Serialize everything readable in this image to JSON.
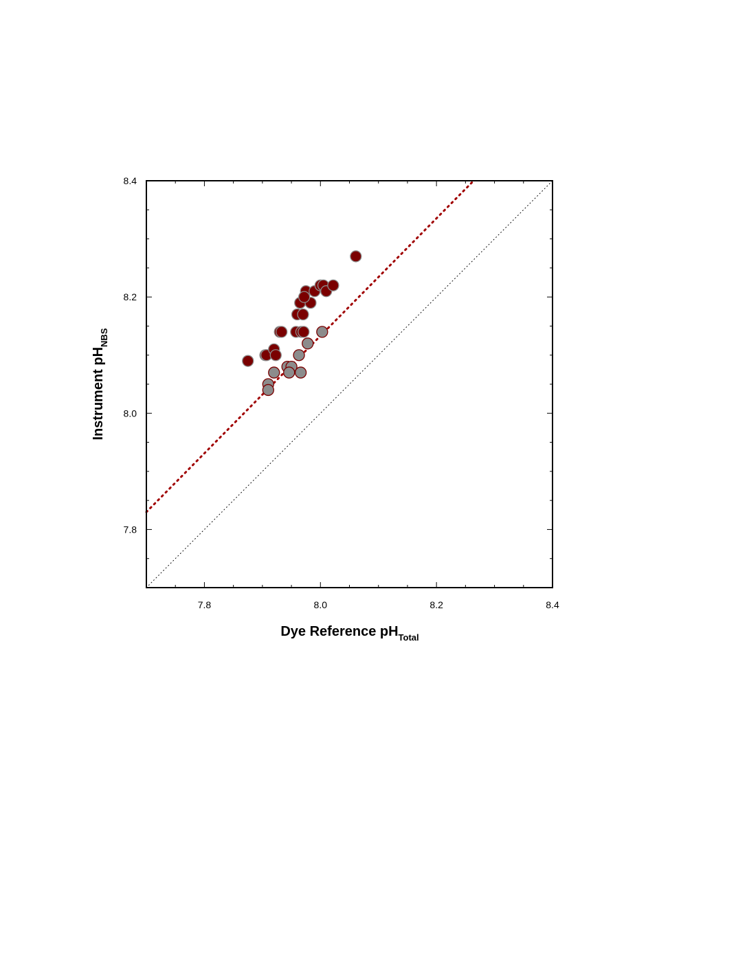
{
  "chart_data": {
    "type": "scatter",
    "xlabel": "Dye Reference pH",
    "xlabel_sub": "Total",
    "ylabel": "Instrument pH",
    "ylabel_sub": "NBS",
    "xlim": [
      7.7,
      8.4
    ],
    "ylim": [
      7.7,
      8.4
    ],
    "xticks": [
      7.8,
      {
        "value": 8,
        "label": "8.0"
      },
      8.2,
      8.4
    ],
    "yticks": [
      7.8,
      {
        "value": 8,
        "label": "8.0"
      },
      8.2,
      8.4
    ],
    "xminorticks": [
      7.75,
      7.85,
      7.9,
      7.95,
      8.05,
      8.1,
      8.15,
      8.25,
      8.3,
      8.35
    ],
    "yminorticks": [
      7.75,
      7.85,
      7.9,
      7.95,
      8.05,
      8.1,
      8.15,
      8.25,
      8.3,
      8.35
    ],
    "series": [
      {
        "color": "#7a0000",
        "edge": "#8c8c8c",
        "x": [
          7.875,
          7.905,
          7.907,
          7.92,
          7.923,
          7.93,
          7.933,
          7.958,
          7.967,
          7.971,
          7.96,
          7.97,
          7.965,
          7.983,
          7.975,
          7.972,
          7.99,
          8.0,
          8.005,
          8.01,
          8.022,
          8.061
        ],
        "y": [
          8.09,
          8.1,
          8.1,
          8.11,
          8.1,
          8.14,
          8.14,
          8.14,
          8.14,
          8.14,
          8.17,
          8.17,
          8.19,
          8.19,
          8.21,
          8.2,
          8.21,
          8.22,
          8.22,
          8.21,
          8.22,
          8.27
        ]
      },
      {
        "color": "#8c8c8c",
        "edge": "#7a0000",
        "x": [
          7.91,
          7.91,
          7.92,
          7.943,
          7.95,
          7.946,
          7.966,
          7.963,
          7.978,
          8.003
        ],
        "y": [
          8.05,
          8.04,
          8.07,
          8.08,
          8.08,
          8.07,
          8.07,
          8.1,
          8.12,
          8.14
        ]
      }
    ],
    "lines": [
      {
        "color": "#000000",
        "x": [
          7.7,
          8.4
        ],
        "y": [
          7.7,
          8.4
        ]
      },
      {
        "color": "#a00000",
        "x": [
          7.7,
          8.264
        ],
        "y": [
          7.83,
          8.4
        ]
      }
    ]
  }
}
